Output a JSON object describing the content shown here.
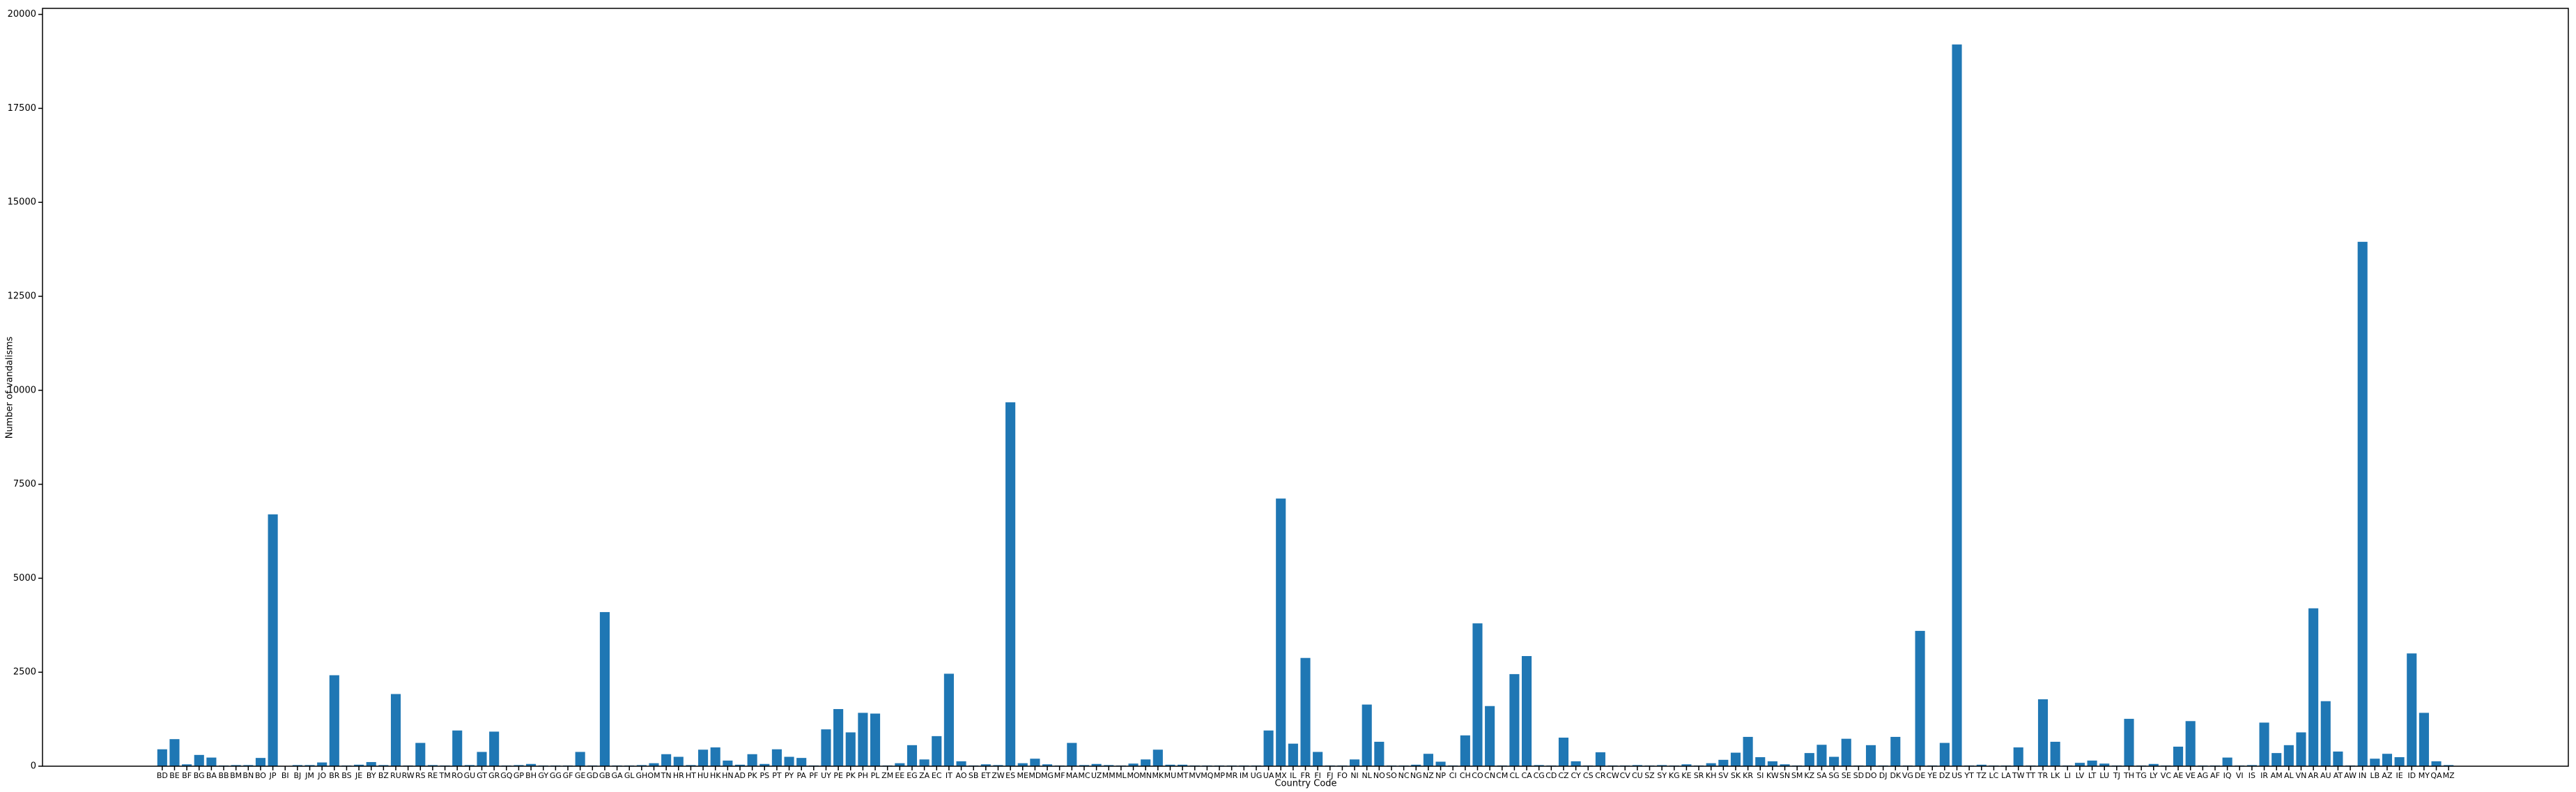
{
  "chart_data": {
    "type": "bar",
    "xlabel": "Country Code",
    "ylabel": "Number of vandalisms",
    "color": "#1f77b4",
    "categories": [
      "BD",
      "BE",
      "BF",
      "BG",
      "BA",
      "BB",
      "BM",
      "BN",
      "BO",
      "JP",
      "BI",
      "BJ",
      "JM",
      "JO",
      "BR",
      "BS",
      "JE",
      "BY",
      "BZ",
      "RU",
      "RW",
      "RS",
      "RE",
      "TM",
      "RO",
      "GU",
      "GT",
      "GR",
      "GQ",
      "GP",
      "BH",
      "GY",
      "GG",
      "GF",
      "GE",
      "GD",
      "GB",
      "GA",
      "GL",
      "GH",
      "OM",
      "TN",
      "HR",
      "HT",
      "HU",
      "HK",
      "HN",
      "AD",
      "PK",
      "PS",
      "PT",
      "PY",
      "PA",
      "PF",
      "UY",
      "PE",
      "PK",
      "PH",
      "PL",
      "ZM",
      "EE",
      "EG",
      "ZA",
      "EC",
      "IT",
      "AO",
      "SB",
      "ET",
      "ZW",
      "ES",
      "ME",
      "MD",
      "MG",
      "MF",
      "MA",
      "MC",
      "UZ",
      "MM",
      "ML",
      "MO",
      "MN",
      "MK",
      "MU",
      "MT",
      "MV",
      "MQ",
      "MP",
      "MR",
      "IM",
      "UG",
      "UA",
      "MX",
      "IL",
      "FR",
      "FI",
      "FJ",
      "FO",
      "NI",
      "NL",
      "NO",
      "SO",
      "NC",
      "NG",
      "NZ",
      "NP",
      "CI",
      "CH",
      "CO",
      "CN",
      "CM",
      "CL",
      "CA",
      "CG",
      "CD",
      "CZ",
      "CY",
      "CS",
      "CR",
      "CW",
      "CV",
      "CU",
      "SZ",
      "SY",
      "KG",
      "KE",
      "SR",
      "KH",
      "SV",
      "SK",
      "KR",
      "SI",
      "KW",
      "SN",
      "SM",
      "KZ",
      "SA",
      "SG",
      "SE",
      "SD",
      "DO",
      "DJ",
      "DK",
      "VG",
      "DE",
      "YE",
      "DZ",
      "US",
      "YT",
      "TZ",
      "LC",
      "LA",
      "TW",
      "TT",
      "TR",
      "LK",
      "LI",
      "LV",
      "LT",
      "LU",
      "TJ",
      "TH",
      "TG",
      "LY",
      "VC",
      "AE",
      "VE",
      "AG",
      "AF",
      "IQ",
      "VI",
      "IS",
      "IR",
      "AM",
      "AL",
      "VN",
      "AR",
      "AU",
      "AT",
      "AW",
      "IN",
      "LB",
      "AZ",
      "IE",
      "ID",
      "MY",
      "QA",
      "MZ"
    ],
    "values": [
      450,
      720,
      50,
      300,
      230,
      20,
      30,
      30,
      220,
      6700,
      10,
      30,
      30,
      100,
      2420,
      20,
      40,
      110,
      30,
      1920,
      20,
      620,
      30,
      20,
      950,
      30,
      380,
      920,
      20,
      30,
      60,
      20,
      20,
      20,
      380,
      20,
      4100,
      20,
      20,
      30,
      80,
      320,
      250,
      30,
      440,
      500,
      150,
      40,
      320,
      60,
      450,
      250,
      220,
      20,
      980,
      1520,
      900,
      1420,
      1400,
      20,
      80,
      560,
      180,
      800,
      2460,
      130,
      20,
      50,
      30,
      9680,
      80,
      200,
      50,
      20,
      620,
      30,
      60,
      30,
      20,
      70,
      180,
      440,
      40,
      40,
      20,
      20,
      20,
      20,
      20,
      20,
      950,
      7120,
      600,
      2880,
      380,
      20,
      20,
      180,
      1640,
      650,
      20,
      20,
      40,
      330,
      120,
      20,
      820,
      3800,
      1600,
      20,
      2450,
      2930,
      30,
      20,
      760,
      130,
      20,
      370,
      20,
      20,
      30,
      20,
      30,
      20,
      50,
      20,
      80,
      170,
      360,
      780,
      240,
      130,
      50,
      20,
      350,
      570,
      250,
      730,
      20,
      560,
      20,
      780,
      20,
      3600,
      20,
      620,
      19200,
      20,
      40,
      20,
      20,
      500,
      20,
      1780,
      650,
      20,
      90,
      150,
      70,
      20,
      1260,
      20,
      60,
      20,
      520,
      1200,
      20,
      20,
      230,
      20,
      30,
      1160,
      350,
      560,
      900,
      4200,
      1730,
      390,
      20,
      13950,
      200,
      330,
      240,
      3000,
      1420,
      130,
      30
    ],
    "ylim": [
      0,
      20160
    ],
    "yticks": [
      0,
      2500,
      5000,
      7500,
      10000,
      12500,
      15000,
      17500,
      20000
    ]
  }
}
